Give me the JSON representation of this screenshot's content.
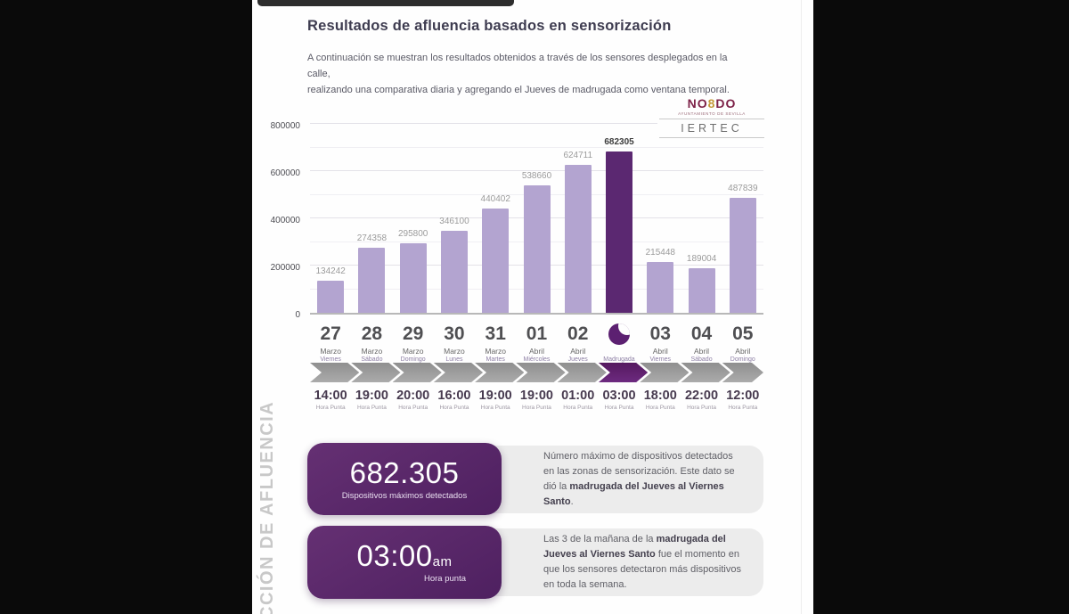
{
  "header": {
    "title": "Resultados de afluencia basados en sensorización",
    "subtitle_line1": "A continuación se muestran los resultados obtenidos a través de los sensores desplegados en la calle,",
    "subtitle_line2": "realizando una comparativa diaria y agregando el Jueves de madrugada como ventana temporal."
  },
  "side_label": "CCIÓN DE AFLUENCIA",
  "logo": {
    "no": "NO",
    "eight": "8",
    "do": "DO",
    "subtext": "AYUNTAMIENTO DE SEVILLA",
    "partner": "IERTEC"
  },
  "chart_data": {
    "type": "bar",
    "title": "",
    "xlabel": "",
    "ylabel": "",
    "ylim": [
      0,
      800000
    ],
    "ytick_major": 200000,
    "ytick_minor": 100000,
    "grid": true,
    "categories": [
      {
        "day": "27",
        "month": "Marzo",
        "weekday": "Viernes"
      },
      {
        "day": "28",
        "month": "Marzo",
        "weekday": "Sábado"
      },
      {
        "day": "29",
        "month": "Marzo",
        "weekday": "Domingo"
      },
      {
        "day": "30",
        "month": "Marzo",
        "weekday": "Lunes"
      },
      {
        "day": "31",
        "month": "Marzo",
        "weekday": "Martes"
      },
      {
        "day": "01",
        "month": "Abril",
        "weekday": "Miércoles"
      },
      {
        "day": "02",
        "month": "Abril",
        "weekday": "Jueves"
      },
      {
        "day": "",
        "month": "",
        "weekday": "Madrugada",
        "icon": "moon"
      },
      {
        "day": "03",
        "month": "Abril",
        "weekday": "Viernes"
      },
      {
        "day": "04",
        "month": "Abril",
        "weekday": "Sábado"
      },
      {
        "day": "05",
        "month": "Abril",
        "weekday": "Domingo"
      }
    ],
    "values": [
      134242,
      274358,
      295800,
      346100,
      440402,
      538660,
      624711,
      682305,
      215448,
      189004,
      487839
    ],
    "highlight_index": 7,
    "bar_color": "#b3a4d0",
    "highlight_color": "#5b2871"
  },
  "timeline": {
    "peak_times": [
      "14:00",
      "19:00",
      "20:00",
      "16:00",
      "19:00",
      "19:00",
      "01:00",
      "03:00",
      "18:00",
      "22:00",
      "12:00"
    ],
    "peak_label": "Hora Punta",
    "highlight_index": 7
  },
  "cards": [
    {
      "value": "682.305",
      "value_suffix": "",
      "value_label": "Dispositivos máximos detectados",
      "text_before": "Número máximo de dispositivos detectados en las zonas de sensorización. Este dato se dió la ",
      "text_bold": "madrugada del Jueves al Viernes Santo",
      "text_after": "."
    },
    {
      "value": "03:00",
      "value_suffix": "am",
      "value_label": "Hora punta",
      "text_before": "Las 3 de la mañana de la ",
      "text_bold": "madrugada del Jueves al Viernes Santo",
      "text_after": " fue el momento en que los sensores detectaron más dispositivos en toda la semana."
    }
  ]
}
